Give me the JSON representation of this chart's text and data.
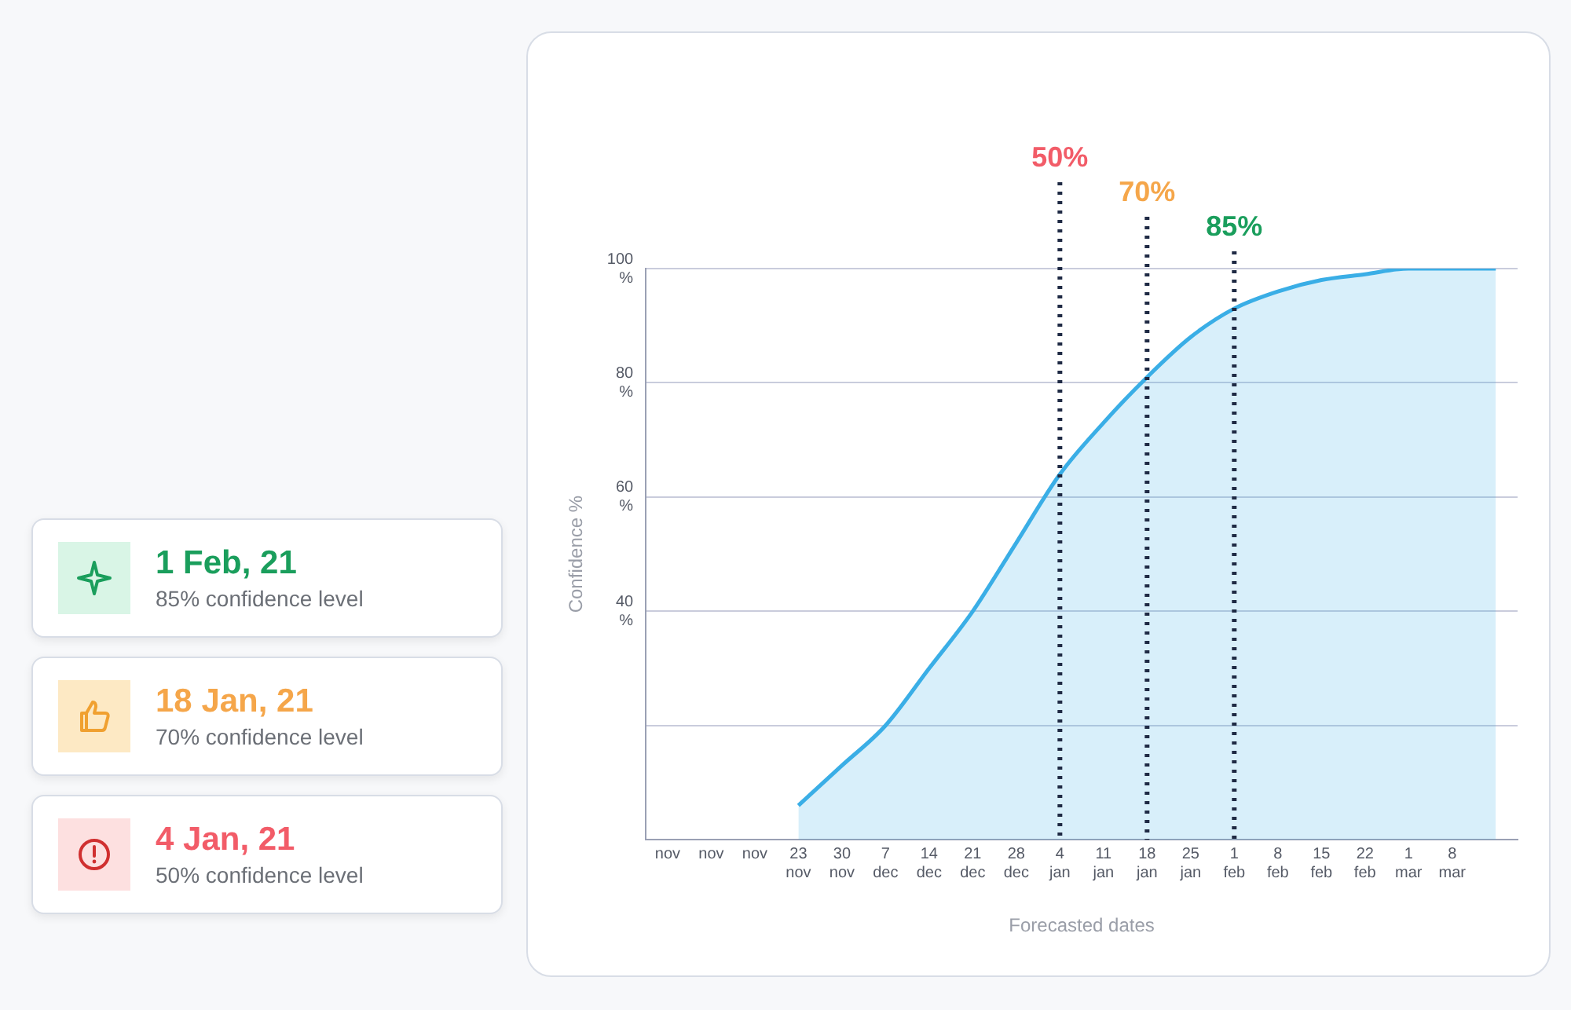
{
  "chart_data": {
    "type": "area",
    "xlabel": "Forecasted dates",
    "ylabel": "Confidence %",
    "categories": [
      "nov",
      "nov",
      "nov",
      "23 nov",
      "30 nov",
      "7 dec",
      "14 dec",
      "21 dec",
      "28 dec",
      "4 jan",
      "11 jan",
      "18 jan",
      "25 jan",
      "1 feb",
      "8 feb",
      "15 feb",
      "22 feb",
      "1 mar",
      "8 mar",
      null
    ],
    "series": [
      {
        "color": "#3aaee6",
        "values": [
          null,
          null,
          null,
          6,
          13,
          20,
          30,
          40,
          52,
          64,
          73,
          81,
          88,
          93,
          96,
          98,
          99,
          100,
          100,
          100
        ]
      }
    ],
    "ylim": [
      0,
      100
    ],
    "yticks": [
      {
        "value": 0,
        "label": null
      },
      {
        "value": 20,
        "label": null
      },
      {
        "value": 40,
        "label": "40 %"
      },
      {
        "value": 60,
        "label": "60 %"
      },
      {
        "value": 80,
        "label": "80 %"
      },
      {
        "value": 100,
        "label": "100 %"
      }
    ],
    "grid": "y",
    "legend": false,
    "marker": "none",
    "line_style": "solid",
    "ref_lines": [
      {
        "axis": "x",
        "value": "4 jan",
        "label": "50%",
        "color": "#1f2a44",
        "line_style": "dotted"
      },
      {
        "axis": "x",
        "value": "18 jan",
        "label": "70%",
        "color": "#1f2a44",
        "line_style": "dotted"
      },
      {
        "axis": "x",
        "value": "1 feb",
        "label": "85%",
        "color": "#1f2a44",
        "line_style": "dotted"
      }
    ],
    "annotations": [
      "1 Feb, 21",
      "85% confidence level",
      "18 Jan, 21",
      "70% confidence level",
      "4 Jan, 21",
      "50% confidence level"
    ]
  }
}
